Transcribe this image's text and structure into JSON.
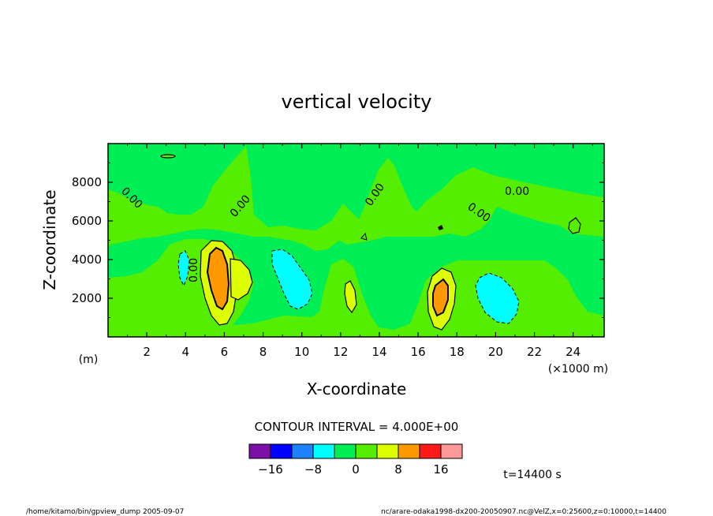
{
  "chart_data": {
    "type": "heatmap",
    "title": "vertical velocity",
    "xlabel": "X-coordinate",
    "xunit": "(×1000 m)",
    "ylabel": "Z-coordinate",
    "yunit": "(m)",
    "xlim": [
      0,
      25.6
    ],
    "ylim": [
      0,
      10000
    ],
    "x_ticks": [
      2,
      4,
      6,
      8,
      10,
      12,
      14,
      16,
      18,
      20,
      22,
      24
    ],
    "y_ticks": [
      2000,
      4000,
      6000,
      8000
    ],
    "contour_interval_text": "CONTOUR INTERVAL = 4.000E+00",
    "contour_labels": [
      "0.00",
      "0.00",
      "0.00",
      "0.00",
      "0.00",
      "0.00"
    ],
    "colorbar": {
      "levels": [
        -20,
        -16,
        -12,
        -8,
        -4,
        0,
        4,
        8,
        12,
        16,
        20
      ],
      "colors": [
        "#7b0fa8",
        "#0000ff",
        "#1e82ff",
        "#00ffff",
        "#00ee55",
        "#55ee00",
        "#ddff00",
        "#ff9900",
        "#ff1a1a",
        "#ff9999"
      ],
      "tick_labels": [
        "−16",
        "−8",
        "0",
        "8",
        "16"
      ],
      "tick_values": [
        -16,
        -8,
        0,
        8,
        16
      ]
    },
    "features": [
      {
        "type": "updraft",
        "x_center": 5.8,
        "z_center": 3200,
        "max_level": 12
      },
      {
        "type": "updraft",
        "x_center": 17.0,
        "z_center": 2200,
        "max_level": 12
      },
      {
        "type": "updraft",
        "x_center": 12.4,
        "z_center": 2000,
        "max_level": 8
      },
      {
        "type": "downdraft",
        "x_center": 9.4,
        "z_center": 3000,
        "min_level": -4
      },
      {
        "type": "downdraft",
        "x_center": 20.2,
        "z_center": 2000,
        "min_level": -4
      },
      {
        "type": "downdraft",
        "x_center": 3.9,
        "z_center": 3500,
        "min_level": -4
      }
    ],
    "time_label": "t=14400 s"
  },
  "footer": {
    "left": "/home/kitamo/bin/gpview_dump  2005-09-07",
    "right": "nc/arare-odaka1998-dx200-20050907.nc@VelZ,x=0:25600,z=0:10000,t=14400"
  }
}
